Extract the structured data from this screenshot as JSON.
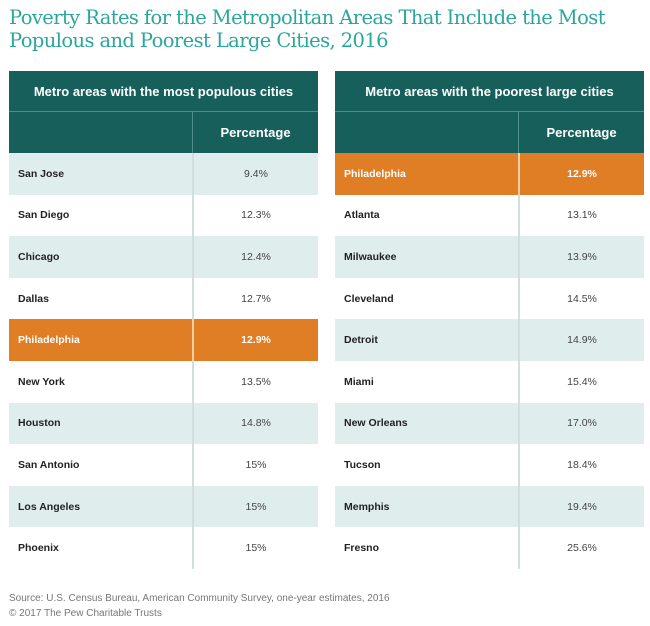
{
  "title": "Poverty Rates for the Metropolitan Areas That Include the Most Populous and Poorest Large Cities, 2016",
  "colors": {
    "header": "#165f5a",
    "highlight": "#e07e26",
    "shade": "#e0eded",
    "title": "#2aa79a"
  },
  "tables": [
    {
      "heading": "Metro areas with the most populous cities",
      "column_header": "Percentage",
      "rows": [
        {
          "name": "San Jose",
          "value": "9.4%",
          "highlight": false
        },
        {
          "name": "San Diego",
          "value": "12.3%",
          "highlight": false
        },
        {
          "name": "Chicago",
          "value": "12.4%",
          "highlight": false
        },
        {
          "name": "Dallas",
          "value": "12.7%",
          "highlight": false
        },
        {
          "name": "Philadelphia",
          "value": "12.9%",
          "highlight": true
        },
        {
          "name": "New York",
          "value": "13.5%",
          "highlight": false
        },
        {
          "name": "Houston",
          "value": "14.8%",
          "highlight": false
        },
        {
          "name": "San Antonio",
          "value": "15%",
          "highlight": false
        },
        {
          "name": "Los Angeles",
          "value": "15%",
          "highlight": false
        },
        {
          "name": "Phoenix",
          "value": "15%",
          "highlight": false
        }
      ]
    },
    {
      "heading": "Metro areas with the poorest large cities",
      "column_header": "Percentage",
      "rows": [
        {
          "name": "Philadelphia",
          "value": "12.9%",
          "highlight": true
        },
        {
          "name": "Atlanta",
          "value": "13.1%",
          "highlight": false
        },
        {
          "name": "Milwaukee",
          "value": "13.9%",
          "highlight": false
        },
        {
          "name": "Cleveland",
          "value": "14.5%",
          "highlight": false
        },
        {
          "name": "Detroit",
          "value": "14.9%",
          "highlight": false
        },
        {
          "name": "Miami",
          "value": "15.4%",
          "highlight": false
        },
        {
          "name": "New Orleans",
          "value": "17.0%",
          "highlight": false
        },
        {
          "name": "Tucson",
          "value": "18.4%",
          "highlight": false
        },
        {
          "name": "Memphis",
          "value": "19.4%",
          "highlight": false
        },
        {
          "name": "Fresno",
          "value": "25.6%",
          "highlight": false
        }
      ]
    }
  ],
  "footer": {
    "source": "Source: U.S. Census Bureau, American Community Survey, one-year estimates, 2016",
    "copyright": "© 2017 The Pew Charitable Trusts"
  }
}
